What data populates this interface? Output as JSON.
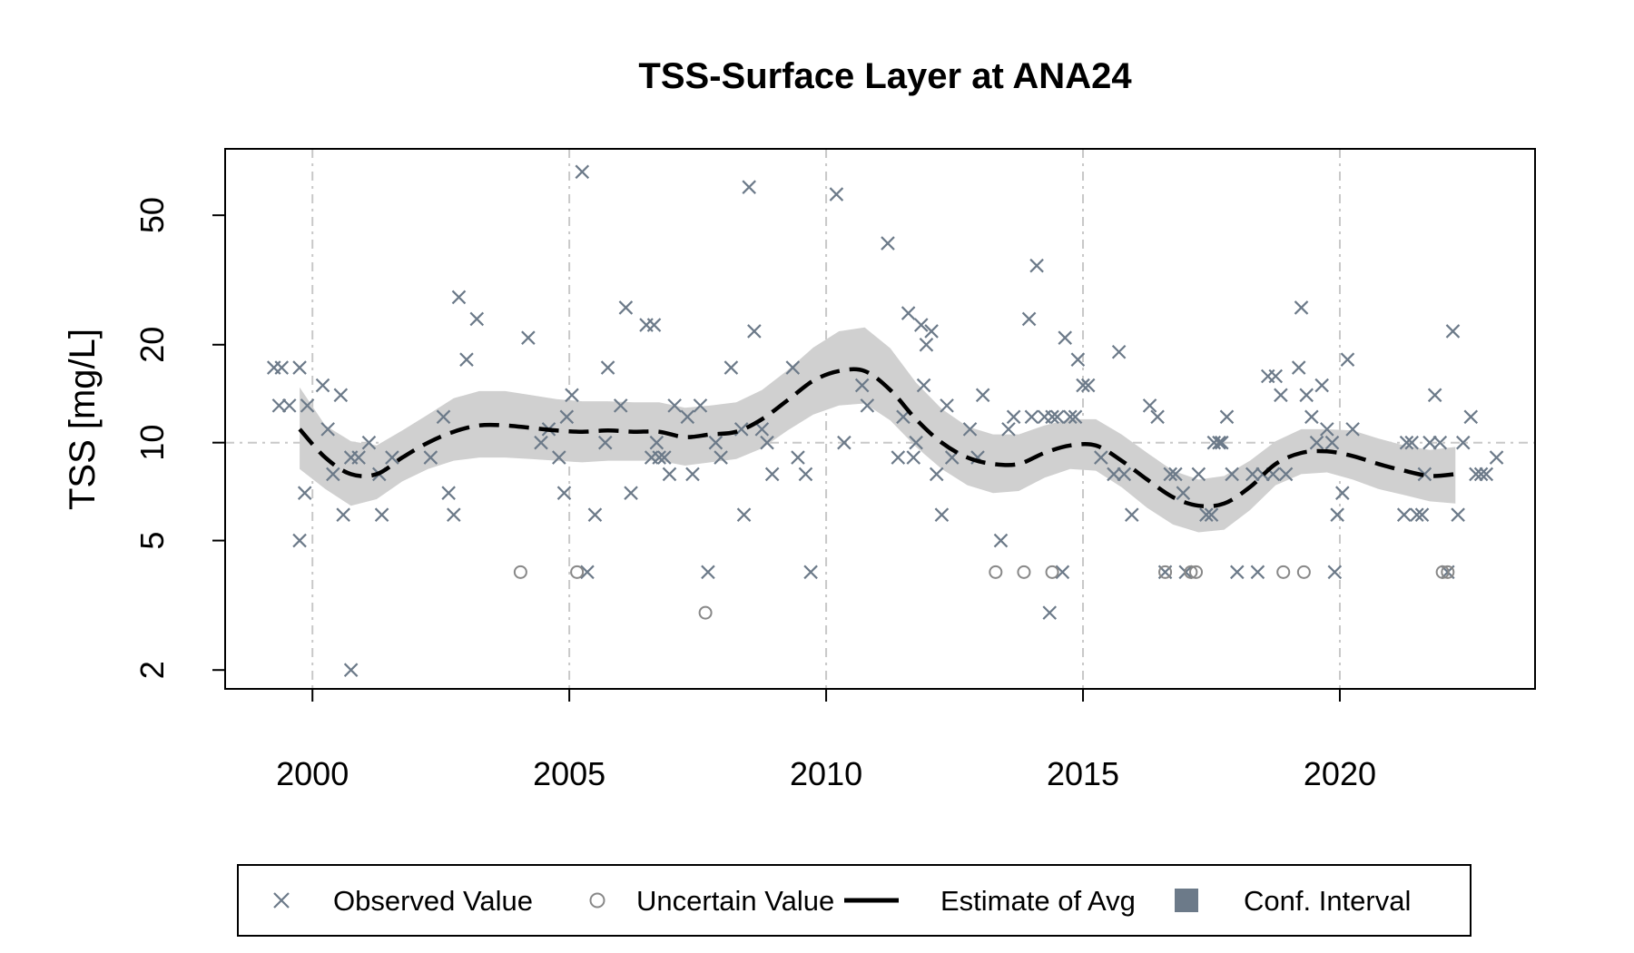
{
  "chart_data": {
    "type": "scatter",
    "title": "TSS-Surface Layer at ANA24",
    "xlabel": "",
    "ylabel": "TSS [mg/L]",
    "y_scale": "log",
    "xlim": [
      1998.3,
      2023.8
    ],
    "ylim": [
      1.75,
      80
    ],
    "x_ticks": [
      2000,
      2005,
      2010,
      2015,
      2020
    ],
    "x_tick_labels": [
      "2000",
      "2005",
      "2010",
      "2015",
      "2020"
    ],
    "y_ticks": [
      2,
      5,
      10,
      20,
      50
    ],
    "y_tick_labels": [
      "2",
      "5",
      "10",
      "20",
      "50"
    ],
    "grid": true,
    "reference_line_y": 10,
    "colors": {
      "observed": "#6c7a89",
      "uncertain": "#888888",
      "estimate": "#000000",
      "ci_fill": "#d0d0d0",
      "legend_ci_swatch": "#6c7a89",
      "grid": "#c8c8c8"
    },
    "legend": {
      "placement": "bottom",
      "items": [
        {
          "label": "Observed Value",
          "symbol": "x"
        },
        {
          "label": "Uncertain Value",
          "symbol": "circle"
        },
        {
          "label": "Estimate of Avg",
          "symbol": "dashed-line"
        },
        {
          "label": "Conf. Interval",
          "symbol": "square"
        }
      ]
    },
    "series": [
      {
        "name": "Observed Value",
        "marker": "x",
        "points": [
          [
            1999.25,
            17
          ],
          [
            1999.4,
            17
          ],
          [
            1999.55,
            13
          ],
          [
            1999.35,
            13
          ],
          [
            1999.75,
            17
          ],
          [
            1999.9,
            13
          ],
          [
            1999.75,
            5
          ],
          [
            1999.85,
            7
          ],
          [
            2000.2,
            15
          ],
          [
            2000.3,
            11
          ],
          [
            2000.4,
            8
          ],
          [
            2000.55,
            14
          ],
          [
            2000.6,
            6
          ],
          [
            2000.75,
            9
          ],
          [
            2000.75,
            2
          ],
          [
            2000.9,
            9
          ],
          [
            2001.1,
            10
          ],
          [
            2001.3,
            8
          ],
          [
            2001.35,
            6
          ],
          [
            2001.55,
            9
          ],
          [
            2002.3,
            9
          ],
          [
            2002.55,
            12
          ],
          [
            2002.65,
            7
          ],
          [
            2002.75,
            6
          ],
          [
            2002.85,
            28
          ],
          [
            2003.0,
            18
          ],
          [
            2003.2,
            24
          ],
          [
            2004.2,
            21
          ],
          [
            2004.45,
            10
          ],
          [
            2004.6,
            11
          ],
          [
            2004.8,
            9
          ],
          [
            2004.95,
            12
          ],
          [
            2004.9,
            7
          ],
          [
            2005.05,
            14
          ],
          [
            2005.25,
            68
          ],
          [
            2005.35,
            4
          ],
          [
            2005.5,
            6
          ],
          [
            2005.7,
            10
          ],
          [
            2005.75,
            17
          ],
          [
            2006.0,
            13
          ],
          [
            2006.1,
            26
          ],
          [
            2006.2,
            7
          ],
          [
            2006.5,
            23
          ],
          [
            2006.65,
            23
          ],
          [
            2006.6,
            9
          ],
          [
            2006.7,
            10
          ],
          [
            2006.75,
            9
          ],
          [
            2006.85,
            9
          ],
          [
            2006.95,
            8
          ],
          [
            2007.05,
            13
          ],
          [
            2007.3,
            12
          ],
          [
            2007.4,
            8
          ],
          [
            2007.55,
            13
          ],
          [
            2007.7,
            4
          ],
          [
            2007.85,
            10
          ],
          [
            2007.95,
            9
          ],
          [
            2008.15,
            17
          ],
          [
            2008.35,
            11
          ],
          [
            2008.4,
            6
          ],
          [
            2008.5,
            61
          ],
          [
            2008.6,
            22
          ],
          [
            2008.75,
            11
          ],
          [
            2008.85,
            10
          ],
          [
            2008.95,
            8
          ],
          [
            2009.35,
            17
          ],
          [
            2009.45,
            9
          ],
          [
            2009.6,
            8
          ],
          [
            2009.7,
            4
          ],
          [
            2010.2,
            58
          ],
          [
            2010.35,
            10
          ],
          [
            2010.7,
            15
          ],
          [
            2010.8,
            13
          ],
          [
            2011.2,
            41
          ],
          [
            2011.4,
            9
          ],
          [
            2011.5,
            12
          ],
          [
            2011.6,
            25
          ],
          [
            2011.7,
            9
          ],
          [
            2011.75,
            10
          ],
          [
            2011.85,
            23
          ],
          [
            2011.9,
            15
          ],
          [
            2011.95,
            20
          ],
          [
            2012.05,
            22
          ],
          [
            2012.15,
            8
          ],
          [
            2012.25,
            6
          ],
          [
            2012.35,
            13
          ],
          [
            2012.45,
            9
          ],
          [
            2012.8,
            11
          ],
          [
            2012.95,
            9
          ],
          [
            2013.05,
            14
          ],
          [
            2013.4,
            5
          ],
          [
            2013.55,
            11
          ],
          [
            2013.65,
            12
          ],
          [
            2013.95,
            24
          ],
          [
            2014.0,
            12
          ],
          [
            2014.1,
            35
          ],
          [
            2014.25,
            12
          ],
          [
            2014.35,
            3
          ],
          [
            2014.4,
            12
          ],
          [
            2014.5,
            12
          ],
          [
            2014.6,
            4
          ],
          [
            2014.65,
            21
          ],
          [
            2014.75,
            12
          ],
          [
            2014.85,
            12
          ],
          [
            2014.9,
            18
          ],
          [
            2015.0,
            15
          ],
          [
            2015.1,
            15
          ],
          [
            2015.35,
            9
          ],
          [
            2015.6,
            8
          ],
          [
            2015.7,
            19
          ],
          [
            2015.8,
            8
          ],
          [
            2015.95,
            6
          ],
          [
            2016.3,
            13
          ],
          [
            2016.45,
            12
          ],
          [
            2016.6,
            4
          ],
          [
            2016.7,
            8
          ],
          [
            2016.8,
            8
          ],
          [
            2016.95,
            7
          ],
          [
            2017.0,
            4
          ],
          [
            2017.25,
            8
          ],
          [
            2017.4,
            6
          ],
          [
            2017.5,
            6
          ],
          [
            2017.55,
            10
          ],
          [
            2017.65,
            10
          ],
          [
            2017.7,
            10
          ],
          [
            2017.8,
            12
          ],
          [
            2017.9,
            8
          ],
          [
            2018.0,
            4
          ],
          [
            2018.3,
            8
          ],
          [
            2018.4,
            4
          ],
          [
            2018.5,
            8
          ],
          [
            2018.6,
            16
          ],
          [
            2018.7,
            8
          ],
          [
            2018.75,
            16
          ],
          [
            2018.85,
            14
          ],
          [
            2018.95,
            8
          ],
          [
            2019.2,
            17
          ],
          [
            2019.25,
            26
          ],
          [
            2019.35,
            14
          ],
          [
            2019.45,
            12
          ],
          [
            2019.55,
            10
          ],
          [
            2019.65,
            15
          ],
          [
            2019.75,
            11
          ],
          [
            2019.85,
            10
          ],
          [
            2019.9,
            4
          ],
          [
            2019.95,
            6
          ],
          [
            2020.05,
            7
          ],
          [
            2020.15,
            18
          ],
          [
            2020.25,
            11
          ],
          [
            2021.25,
            6
          ],
          [
            2021.3,
            10
          ],
          [
            2021.4,
            10
          ],
          [
            2021.5,
            6
          ],
          [
            2021.6,
            6
          ],
          [
            2021.65,
            8
          ],
          [
            2021.75,
            10
          ],
          [
            2021.85,
            14
          ],
          [
            2021.95,
            10
          ],
          [
            2022.1,
            4
          ],
          [
            2022.2,
            22
          ],
          [
            2022.3,
            6
          ],
          [
            2022.4,
            10
          ],
          [
            2022.55,
            12
          ],
          [
            2022.65,
            8
          ],
          [
            2022.75,
            8
          ],
          [
            2022.85,
            8
          ],
          [
            2023.05,
            9
          ]
        ]
      },
      {
        "name": "Uncertain Value",
        "marker": "circle",
        "points": [
          [
            2004.05,
            4
          ],
          [
            2005.15,
            4
          ],
          [
            2007.65,
            3
          ],
          [
            2013.3,
            4
          ],
          [
            2013.85,
            4
          ],
          [
            2014.4,
            4
          ],
          [
            2016.6,
            4
          ],
          [
            2017.1,
            4
          ],
          [
            2017.2,
            4
          ],
          [
            2018.9,
            4
          ],
          [
            2019.3,
            4
          ],
          [
            2022.0,
            4
          ],
          [
            2022.1,
            4
          ]
        ]
      },
      {
        "name": "Estimate of Avg",
        "marker": "dashed-line",
        "x": [
          1999.75,
          2000.25,
          2000.75,
          2001.25,
          2001.75,
          2002.25,
          2002.75,
          2003.25,
          2003.75,
          2004.25,
          2004.75,
          2005.25,
          2005.75,
          2006.25,
          2006.75,
          2007.25,
          2007.75,
          2008.25,
          2008.75,
          2009.25,
          2009.75,
          2010.25,
          2010.75,
          2011.25,
          2011.75,
          2012.25,
          2012.75,
          2013.25,
          2013.75,
          2014.25,
          2014.75,
          2015.25,
          2015.75,
          2016.25,
          2016.75,
          2017.25,
          2017.75,
          2018.25,
          2018.75,
          2019.25,
          2019.75,
          2020.25,
          2020.75,
          2021.25,
          2021.75,
          2022.25
        ],
        "y": [
          11.0,
          9.0,
          8.0,
          8.0,
          9.0,
          10.0,
          10.8,
          11.3,
          11.3,
          11.1,
          10.9,
          10.8,
          10.9,
          10.8,
          10.8,
          10.4,
          10.6,
          10.8,
          11.8,
          13.5,
          15.5,
          16.6,
          16.6,
          14.5,
          11.8,
          10.0,
          9.0,
          8.6,
          8.6,
          9.3,
          9.8,
          9.8,
          8.8,
          7.7,
          6.8,
          6.4,
          6.5,
          7.3,
          8.6,
          9.3,
          9.4,
          9.1,
          8.6,
          8.2,
          7.9,
          8.0
        ],
        "lower": [
          8.3,
          7.2,
          6.4,
          6.7,
          7.6,
          8.3,
          8.8,
          9.0,
          9.0,
          8.9,
          8.8,
          8.7,
          8.8,
          8.8,
          8.8,
          8.5,
          8.7,
          8.9,
          9.6,
          10.9,
          12.2,
          13.0,
          13.2,
          11.7,
          9.7,
          8.3,
          7.4,
          7.0,
          7.1,
          7.8,
          8.3,
          8.2,
          7.3,
          6.3,
          5.6,
          5.3,
          5.4,
          6.2,
          7.4,
          8.0,
          8.1,
          7.7,
          7.2,
          6.9,
          6.6,
          6.5
        ],
        "upper": [
          14.8,
          11.3,
          10.1,
          9.8,
          10.9,
          12.2,
          13.7,
          14.4,
          14.4,
          14.0,
          13.6,
          13.4,
          13.4,
          13.3,
          13.3,
          12.8,
          13.0,
          13.3,
          14.5,
          16.7,
          19.6,
          22.0,
          22.6,
          19.5,
          15.3,
          12.7,
          11.2,
          10.6,
          10.6,
          11.3,
          11.8,
          11.8,
          10.6,
          9.3,
          8.2,
          7.7,
          7.9,
          8.8,
          10.1,
          11.0,
          11.0,
          10.9,
          10.3,
          9.8,
          9.5,
          9.7
        ]
      }
    ]
  }
}
